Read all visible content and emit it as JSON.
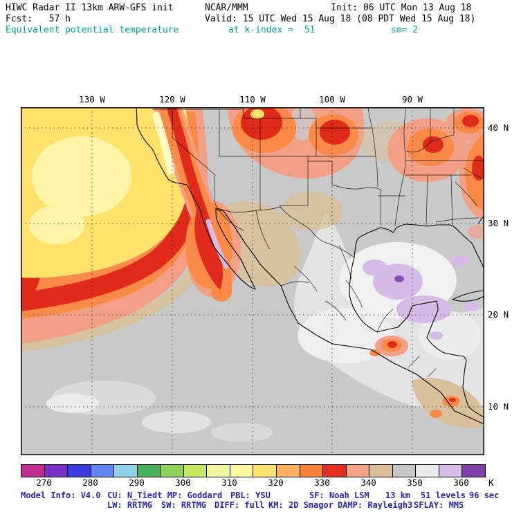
{
  "header": {
    "line1": {
      "model": "HIWC Radar II 13km ARW-GFS init",
      "org": "NCAR/MMM",
      "init": "Init: 06 UTC Mon 13 Aug 18"
    },
    "line2": {
      "fcst": "Fcst:   57 h",
      "valid": "Valid: 15 UTC Wed 15 Aug 18 (08 PDT Wed 15 Aug 18)"
    },
    "line3": {
      "field": "Equivalent potential temperature",
      "level": "at k-index =  51",
      "smoothing": "sm= 2"
    }
  },
  "map": {
    "lon_labels": [
      "130 W",
      "120 W",
      "110 W",
      "100 W",
      "90 W"
    ],
    "lat_labels": [
      "40 N",
      "30 N",
      "20 N",
      "10 N"
    ]
  },
  "colorbar": {
    "tick_labels": [
      "270",
      "280",
      "290",
      "300",
      "310",
      "320",
      "330",
      "340",
      "350",
      "360"
    ],
    "unit": "K",
    "cells": [
      "#c02a8e",
      "#7c2fc8",
      "#3a3bdc",
      "#6287ee",
      "#8ed3ea",
      "#49b05a",
      "#8ed058",
      "#c6e762",
      "#eef69e",
      "#fff6a0",
      "#ffe26b",
      "#ffae5e",
      "#f9823b",
      "#e32d1d",
      "#f2a083",
      "#d9c09a",
      "#c6c6c6",
      "#e9e9e9",
      "#d6bce6",
      "#7d3fa8"
    ]
  },
  "footer": {
    "line1": [
      "Model Info: V4.0",
      "CU: N_Tiedt MP: Goddard",
      "PBL: YSU",
      "SF: Noah LSM",
      "13 km",
      "51 levels",
      "96 sec"
    ],
    "line2": [
      "LW: RRTMG",
      "SW: RRTMG",
      "DIFF: full",
      "KM: 2D Smagor",
      "DAMP: Rayleigh3",
      "SFLAY: MM5"
    ]
  },
  "colors": {
    "accent_cyan": "#00a2a2",
    "footer_navy": "#2626ae",
    "map_base_gray": "#c9c9c9"
  }
}
